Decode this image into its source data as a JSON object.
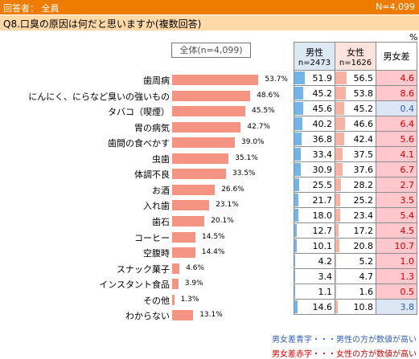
{
  "header": {
    "respondents": "回答者： 全員",
    "n": "N=4,099"
  },
  "question": "Q8.口臭の原因は何だと思いますか(複数回答)",
  "percent_sign": "%",
  "overall_label": "全体(n=4,099)",
  "table_headers": {
    "male": "男性",
    "male_n": "n=2473",
    "female": "女性",
    "female_n": "n=1626",
    "diff": "男女差"
  },
  "legend": {
    "blue": "男女差青字・・・男性の方が数値が高い",
    "red": "男女差赤字・・・女性の方が数値が高い"
  },
  "colors": {
    "header_bar": "#ee7c00",
    "question_bar": "#ffd9a8",
    "overall_bar": "#f59482",
    "male_bar": "#74b5e8",
    "female_bar": "#f7b3a3",
    "diff_red": "#ffc8cc",
    "diff_blue": "#dce6f4",
    "red_text": "#cc0000",
    "blue_text": "#2f5fb3"
  },
  "chart_data": {
    "type": "bar",
    "categories": [
      "歯周病",
      "にんにく、にらなど臭いの強いもの",
      "タバコ（喫煙）",
      "胃の病気",
      "歯間の食べかす",
      "虫歯",
      "体調不良",
      "お酒",
      "入れ歯",
      "歯石",
      "コーヒー",
      "空腹時",
      "スナック菓子",
      "インスタント食品",
      "その他",
      "わからない"
    ],
    "series": [
      {
        "name": "全体(n=4,099)",
        "values": [
          53.7,
          48.6,
          45.5,
          42.7,
          39.0,
          35.1,
          33.5,
          26.6,
          23.1,
          20.1,
          14.5,
          14.4,
          4.6,
          3.9,
          1.3,
          13.1
        ]
      },
      {
        "name": "男性",
        "values": [
          51.9,
          45.2,
          45.6,
          40.2,
          36.8,
          33.4,
          30.9,
          25.5,
          21.7,
          18.0,
          12.7,
          10.1,
          4.2,
          3.4,
          1.1,
          14.6
        ]
      },
      {
        "name": "女性",
        "values": [
          56.5,
          53.8,
          45.2,
          46.6,
          42.4,
          37.5,
          37.6,
          28.2,
          25.2,
          23.4,
          17.2,
          20.8,
          5.2,
          4.7,
          1.6,
          10.8
        ]
      },
      {
        "name": "男女差",
        "values": [
          4.6,
          8.6,
          0.4,
          6.4,
          5.6,
          4.1,
          6.7,
          2.7,
          3.5,
          5.4,
          4.5,
          10.7,
          1.0,
          1.3,
          0.5,
          3.8
        ]
      }
    ],
    "value_labels": [
      "53.7%",
      "48.6%",
      "45.5%",
      "42.7%",
      "39.0%",
      "35.1%",
      "33.5%",
      "26.6%",
      "23.1%",
      "20.1%",
      "14.5%",
      "14.4%",
      "4.6%",
      "3.9%",
      "1.3%",
      "13.1%"
    ],
    "male_labels": [
      "51.9",
      "45.2",
      "45.6",
      "40.2",
      "36.8",
      "33.4",
      "30.9",
      "25.5",
      "21.7",
      "18.0",
      "12.7",
      "10.1",
      "4.2",
      "3.4",
      "1.1",
      "14.6"
    ],
    "female_labels": [
      "56.5",
      "53.8",
      "45.2",
      "46.6",
      "42.4",
      "37.5",
      "37.6",
      "28.2",
      "25.2",
      "23.4",
      "17.2",
      "20.8",
      "5.2",
      "4.7",
      "1.6",
      "10.8"
    ],
    "diff_labels": [
      "4.6",
      "8.6",
      "0.4",
      "6.4",
      "5.6",
      "4.1",
      "6.7",
      "2.7",
      "3.5",
      "5.4",
      "4.5",
      "10.7",
      "1.0",
      "1.3",
      "0.5",
      "3.8"
    ],
    "diff_direction": [
      "female",
      "female",
      "male",
      "female",
      "female",
      "female",
      "female",
      "female",
      "female",
      "female",
      "female",
      "female",
      "female",
      "female",
      "female",
      "male"
    ],
    "xlim": [
      0,
      100
    ],
    "grid": false
  }
}
